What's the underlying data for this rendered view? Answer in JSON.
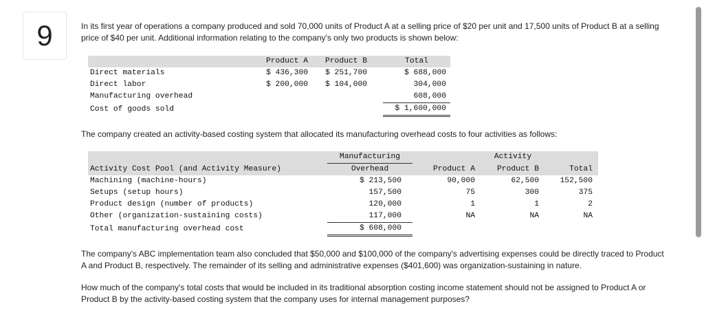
{
  "question_number": "9",
  "intro": "In its first year of operations a company produced and sold 70,000 units of Product A at a selling price of $20 per unit and 17,500 units of Product B at a selling price of $40 per unit. Additional information relating to the company's only two products is shown below:",
  "table1": {
    "headers": [
      "",
      "Product A",
      "Product B",
      "Total"
    ],
    "rows": [
      [
        "Direct materials",
        "$ 436,300",
        "$ 251,700",
        "$ 688,000"
      ],
      [
        "Direct labor",
        "$ 200,000",
        "$ 104,000",
        "304,000"
      ],
      [
        "Manufacturing overhead",
        "",
        "",
        "608,000"
      ],
      [
        "Cost of goods sold",
        "",
        "",
        "$ 1,600,000"
      ]
    ]
  },
  "abc_intro": "The company created an activity-based costing system that allocated its manufacturing overhead costs to four activities as follows:",
  "table2": {
    "header_top": [
      "",
      "Manufacturing",
      "Activity"
    ],
    "header_bottom": [
      "Activity Cost Pool (and Activity Measure)",
      "Overhead",
      "Product A",
      "Product B",
      "Total"
    ],
    "rows": [
      [
        "Machining (machine-hours)",
        "$ 213,500",
        "90,000",
        "62,500",
        "152,500"
      ],
      [
        "Setups (setup hours)",
        "157,500",
        "75",
        "300",
        "375"
      ],
      [
        "Product design (number of products)",
        "120,000",
        "1",
        "1",
        "2"
      ],
      [
        "Other (organization-sustaining costs)",
        "117,000",
        "NA",
        "NA",
        "NA"
      ]
    ],
    "total_row": [
      "Total manufacturing overhead cost",
      "$ 608,000"
    ]
  },
  "para2": "The company's ABC implementation team also concluded that $50,000 and $100,000 of the company's advertising expenses could be directly traced to Product A and Product B, respectively. The remainder of its selling and administrative expenses ($401,600) was organization-sustaining in nature.",
  "question": "How much of the company's total costs that would be included in its traditional absorption costing income statement should not be assigned to Product A or Product B by the activity-based costing system that the company uses for internal management purposes?"
}
